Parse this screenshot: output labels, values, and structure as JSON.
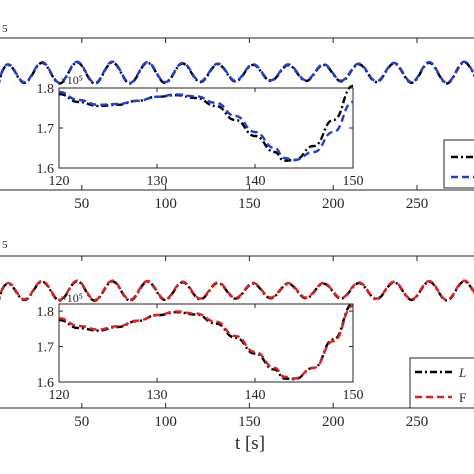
{
  "chart_data": [
    {
      "panel": "top",
      "type": "line",
      "exponent_label": "5",
      "x_ticks": [
        "50",
        "100",
        "150",
        "200",
        "250"
      ],
      "xlim": [
        0,
        287
      ],
      "series": [
        {
          "name": "",
          "color": "#000000",
          "dash": "dashdot"
        },
        {
          "name": "",
          "color": "#1f3fd6",
          "dash": "dash"
        }
      ],
      "signal": {
        "base": 1.74,
        "amplitude": 0.055,
        "period": 21,
        "start_dip": 1.5
      },
      "inset": {
        "exponent_label": "×10⁵",
        "x_ticks": [
          "120",
          "130",
          "140",
          "150"
        ],
        "y_ticks": [
          "1.8",
          "1.7",
          "1.6"
        ],
        "xlim": [
          120,
          150
        ],
        "ylim": [
          1.6,
          1.8
        ],
        "x": [
          120,
          122,
          124,
          126,
          128,
          130,
          132,
          134,
          136,
          138,
          140,
          142,
          143,
          144,
          146,
          148,
          150
        ],
        "y1": [
          1.785,
          1.765,
          1.755,
          1.758,
          1.768,
          1.778,
          1.782,
          1.775,
          1.755,
          1.72,
          1.68,
          1.64,
          1.618,
          1.62,
          1.655,
          1.72,
          1.805
        ],
        "y2": [
          1.79,
          1.77,
          1.758,
          1.76,
          1.768,
          1.778,
          1.784,
          1.779,
          1.763,
          1.73,
          1.69,
          1.65,
          1.625,
          1.62,
          1.64,
          1.69,
          1.765
        ]
      }
    },
    {
      "panel": "bottom",
      "type": "line",
      "exponent_label": "5",
      "x_ticks": [
        "50",
        "100",
        "150",
        "200",
        "250"
      ],
      "xlim": [
        0,
        287
      ],
      "xlabel": "t [s]",
      "series": [
        {
          "name": "L",
          "color": "#000000",
          "dash": "dashdot"
        },
        {
          "name": "F",
          "color": "#e02020",
          "dash": "dash"
        }
      ],
      "signal": {
        "base": 1.74,
        "amplitude": 0.05,
        "period": 21,
        "start_dip": 1.5
      },
      "inset": {
        "exponent_label": "×10⁵",
        "x_ticks": [
          "120",
          "130",
          "140",
          "150"
        ],
        "y_ticks": [
          "1.8",
          "1.7",
          "1.6"
        ],
        "xlim": [
          120,
          150
        ],
        "ylim": [
          1.6,
          1.82
        ],
        "x": [
          120,
          122,
          124,
          126,
          128,
          130,
          132,
          134,
          136,
          138,
          140,
          142,
          143,
          144,
          146,
          148,
          150
        ],
        "y1": [
          1.775,
          1.752,
          1.745,
          1.755,
          1.772,
          1.788,
          1.797,
          1.79,
          1.765,
          1.725,
          1.68,
          1.635,
          1.61,
          1.608,
          1.64,
          1.72,
          1.82
        ],
        "y2": [
          1.78,
          1.758,
          1.748,
          1.757,
          1.773,
          1.789,
          1.799,
          1.793,
          1.77,
          1.73,
          1.685,
          1.64,
          1.615,
          1.61,
          1.64,
          1.715,
          1.815
        ]
      }
    }
  ]
}
